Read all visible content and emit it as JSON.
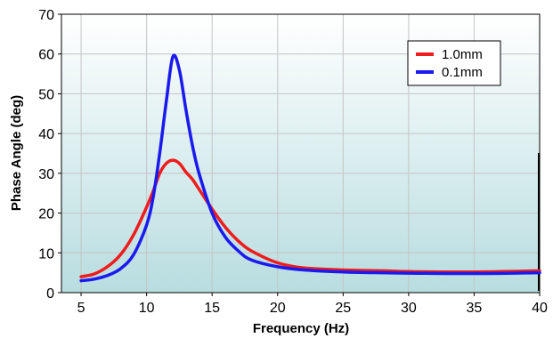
{
  "chart_data": {
    "type": "line",
    "title": "",
    "xlabel": "Frequency (Hz)",
    "ylabel": "Phase Angle (deg)",
    "xlim": [
      3.5,
      40
    ],
    "ylim": [
      0,
      70
    ],
    "xticks": [
      5,
      10,
      15,
      20,
      25,
      30,
      35,
      40
    ],
    "yticks": [
      0,
      10,
      20,
      30,
      40,
      50,
      60,
      70
    ],
    "grid": true,
    "legend_position": "top-right",
    "background_gradient": [
      "#ffffff",
      "#b8dde0"
    ],
    "series": [
      {
        "name": "1.0mm",
        "color": "#ee1c1c",
        "x": [
          5,
          6,
          7,
          8,
          9,
          10,
          10.5,
          11,
          11.5,
          12,
          12.5,
          13,
          13.5,
          14,
          15,
          16,
          17,
          18,
          20,
          22,
          25,
          28,
          30,
          35,
          40
        ],
        "y": [
          4,
          4.7,
          6.5,
          9.5,
          14.5,
          21.5,
          25.5,
          30,
          32.5,
          33.3,
          32.5,
          30.3,
          28.5,
          26,
          21,
          16.5,
          13,
          10.5,
          7.5,
          6.2,
          5.7,
          5.5,
          5.3,
          5.2,
          5.5
        ]
      },
      {
        "name": "0.1mm",
        "color": "#1a1aee",
        "x": [
          5,
          6,
          7,
          8,
          9,
          10,
          10.5,
          11,
          11.5,
          12,
          12.5,
          13,
          13.5,
          14,
          15,
          16,
          17,
          18,
          20,
          22,
          25,
          28,
          30,
          35,
          40
        ],
        "y": [
          3,
          3.4,
          4.3,
          6,
          9.5,
          17,
          24,
          35,
          48,
          59.3,
          56,
          46,
          37,
          30,
          20,
          14,
          10.5,
          8.2,
          6.5,
          5.7,
          5.2,
          5,
          4.9,
          4.8,
          5
        ]
      }
    ]
  }
}
